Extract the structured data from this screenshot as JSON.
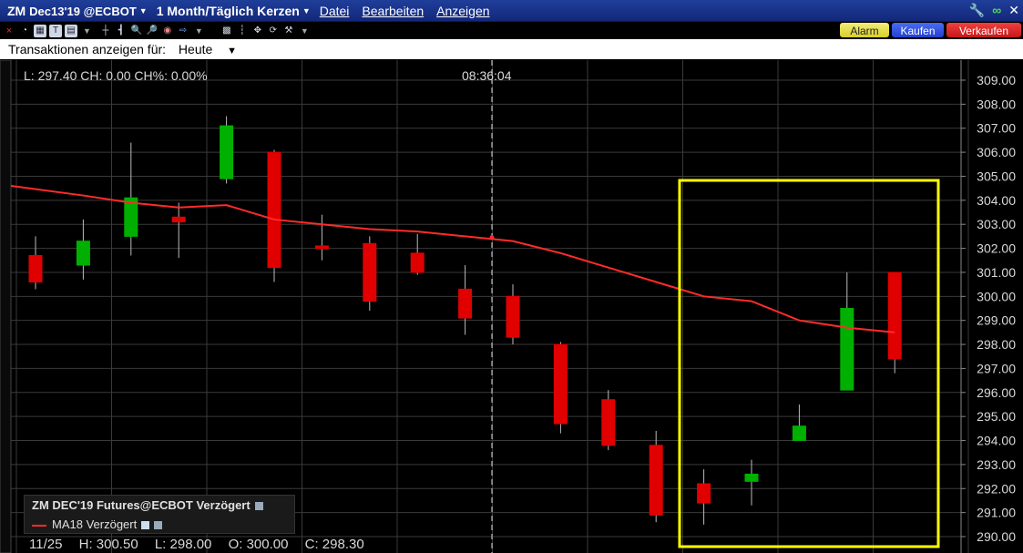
{
  "titlebar": {
    "symbol": "ZM",
    "contract": "Dec13'19 @ECBOT",
    "timeframe": "1 Month/Täglich Kerzen",
    "menus": [
      "Datei",
      "Bearbeiten",
      "Anzeigen"
    ],
    "icons": [
      "wrench-icon",
      "link-icon",
      "close-icon"
    ]
  },
  "order_buttons": {
    "alarm": "Alarm",
    "buy": "Kaufen",
    "sell": "Verkaufen"
  },
  "transactions": {
    "label": "Transaktionen anzeigen für:",
    "value": "Heute"
  },
  "chart_info": {
    "last_line": "L: 297.40 CH: 0.00 CH%: 0.00%",
    "time": "08:36:04",
    "date_label": "11/25",
    "high": "H: 300.50",
    "low": "L: 298.00",
    "open": "O: 300.00",
    "close": "C: 298.30"
  },
  "legend": {
    "series": "ZM DEC'19 Futures@ECBOT Verzögert",
    "indicator": "MA18 Verzögert"
  },
  "colors": {
    "up": "#00b000",
    "down": "#e00000",
    "ma": "#ff2b2b",
    "highlight": "#ffff00",
    "grid": "#3a3a3a"
  },
  "chart_data": {
    "type": "candlestick",
    "ylim": [
      290,
      309
    ],
    "yticks": [
      "309.00",
      "308.00",
      "307.00",
      "306.00",
      "305.00",
      "304.00",
      "303.00",
      "302.00",
      "301.00",
      "300.00",
      "299.00",
      "298.00",
      "297.00",
      "296.00",
      "295.00",
      "294.00",
      "293.00",
      "292.00",
      "291.00",
      "290.00"
    ],
    "candles": [
      {
        "o": 301.7,
        "h": 302.5,
        "l": 300.3,
        "c": 300.6
      },
      {
        "o": 301.3,
        "h": 303.2,
        "l": 300.7,
        "c": 302.3
      },
      {
        "o": 302.5,
        "h": 306.4,
        "l": 301.7,
        "c": 304.1
      },
      {
        "o": 303.3,
        "h": 303.9,
        "l": 301.6,
        "c": 303.1
      },
      {
        "o": 304.9,
        "h": 307.5,
        "l": 304.7,
        "c": 307.1
      },
      {
        "o": 306.0,
        "h": 306.1,
        "l": 300.6,
        "c": 301.2
      },
      {
        "o": 302.1,
        "h": 303.4,
        "l": 301.5,
        "c": 302.0
      },
      {
        "o": 302.2,
        "h": 302.5,
        "l": 299.4,
        "c": 299.8
      },
      {
        "o": 301.8,
        "h": 302.6,
        "l": 300.9,
        "c": 301.0
      },
      {
        "o": 300.3,
        "h": 301.3,
        "l": 298.4,
        "c": 299.1
      },
      {
        "o": 300.0,
        "h": 300.5,
        "l": 298.0,
        "c": 298.3
      },
      {
        "o": 298.0,
        "h": 298.1,
        "l": 294.3,
        "c": 294.7
      },
      {
        "o": 295.7,
        "h": 296.1,
        "l": 293.6,
        "c": 293.8
      },
      {
        "o": 293.8,
        "h": 294.4,
        "l": 290.6,
        "c": 290.9
      },
      {
        "o": 292.2,
        "h": 292.8,
        "l": 290.5,
        "c": 291.4
      },
      {
        "o": 292.3,
        "h": 293.2,
        "l": 291.3,
        "c": 292.6
      },
      {
        "o": 294.0,
        "h": 295.5,
        "l": 294.0,
        "c": 294.6
      },
      {
        "o": 296.1,
        "h": 301.0,
        "l": 296.1,
        "c": 299.5
      },
      {
        "o": 301.0,
        "h": 301.0,
        "l": 296.8,
        "c": 297.4
      }
    ],
    "ma18": [
      304.6,
      304.2,
      303.9,
      303.7,
      303.8,
      303.2,
      303.0,
      302.8,
      302.7,
      302.5,
      302.3,
      301.8,
      301.2,
      300.6,
      300.0,
      299.8,
      299.0,
      298.7,
      298.5
    ]
  }
}
